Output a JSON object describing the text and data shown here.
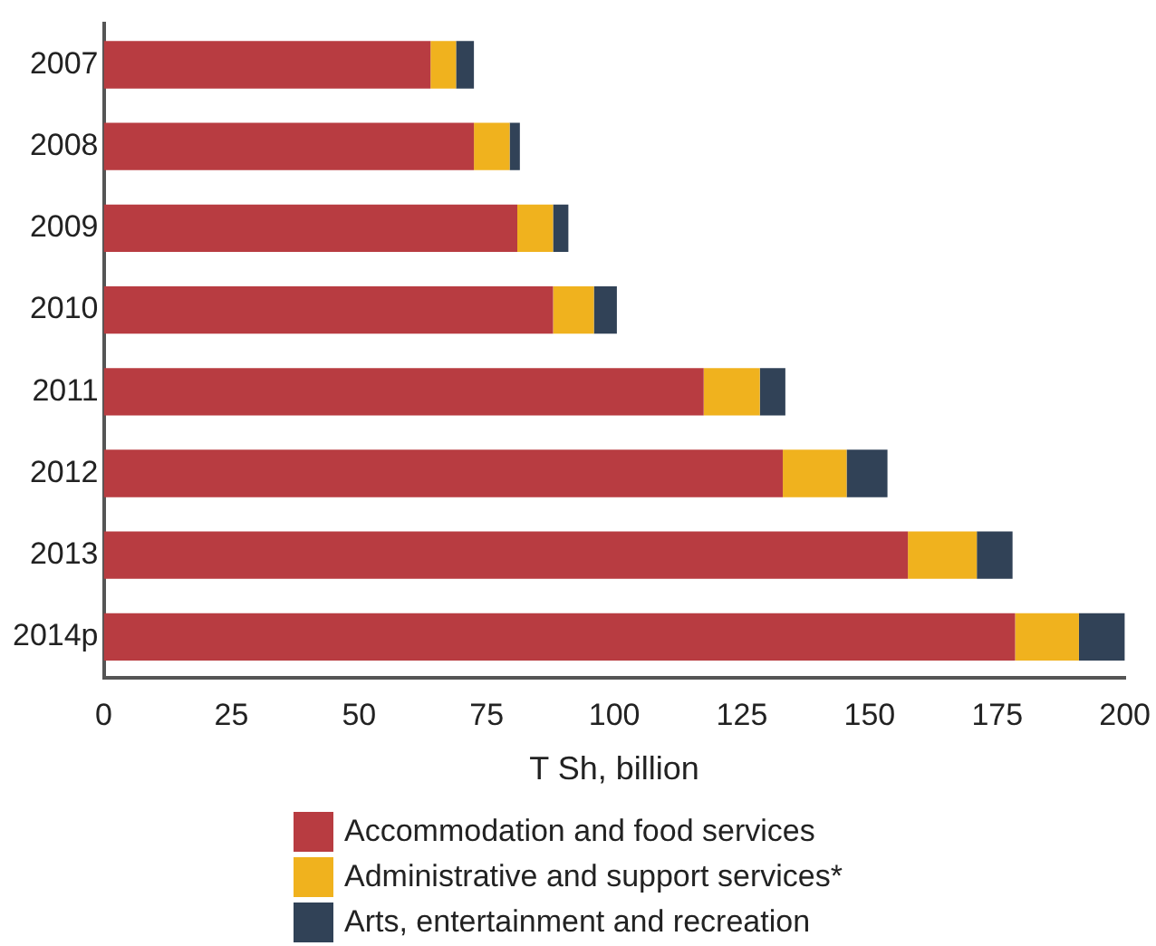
{
  "chart_data": {
    "type": "bar",
    "orientation": "horizontal",
    "stacked": true,
    "xlabel": "T Sh, billion",
    "categories": [
      "2007",
      "2008",
      "2009",
      "2010",
      "2011",
      "2012",
      "2013",
      "2014p"
    ],
    "series": [
      {
        "name": "Accommodation and food services",
        "color": "#b83c41",
        "values": [
          64,
          72.5,
          81,
          88,
          117.5,
          133,
          157.5,
          178.5
        ]
      },
      {
        "name": "Administrative and support services*",
        "color": "#f0b21e",
        "values": [
          5,
          7,
          7,
          8,
          11,
          12.5,
          13.5,
          12.5
        ]
      },
      {
        "name": "Arts, entertainment and recreation",
        "color": "#314257",
        "values": [
          3.5,
          2,
          3,
          4.5,
          5,
          8,
          7,
          9
        ]
      }
    ],
    "xlim": [
      0,
      200
    ],
    "xticks": [
      0,
      25,
      50,
      75,
      100,
      125,
      150,
      175,
      200
    ],
    "grid": false,
    "legend": "bottom"
  }
}
